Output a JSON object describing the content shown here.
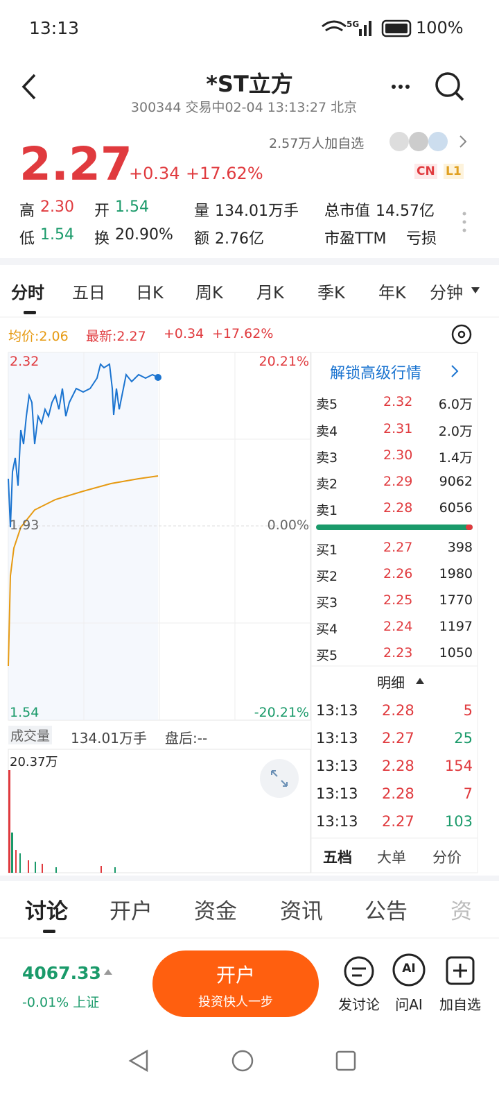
{
  "status": {
    "time": "13:13",
    "network": "5G",
    "battery": "100%"
  },
  "header": {
    "title": "*ST立方",
    "subtitle": "300344 交易中02-04 13:13:27 北京"
  },
  "watchers": "2.57万人加自选",
  "quote": {
    "price": "2.27",
    "change": "+0.34",
    "change_pct": "+17.62%",
    "badges": [
      "CN",
      "L1"
    ]
  },
  "stats": [
    {
      "label": "高",
      "value": "2.30"
    },
    {
      "label": "开",
      "value": "1.54"
    },
    {
      "label": "量",
      "value": "134.01万手"
    },
    {
      "label": "总市值",
      "value": "14.57亿"
    },
    {
      "label": "低",
      "value": "1.54"
    },
    {
      "label": "换",
      "value": "20.90%"
    },
    {
      "label": "额",
      "value": "2.76亿"
    },
    {
      "label": "市盈TTM",
      "value": "亏损"
    }
  ],
  "tabs": [
    "分时",
    "五日",
    "日K",
    "周K",
    "月K",
    "季K",
    "年K",
    "分钟"
  ],
  "chart": {
    "avg": "均价:2.06",
    "latest": "最新:2.27",
    "change": "+0.34",
    "change_pct": "+17.62%",
    "high": "2.32",
    "high_pct": "20.21%",
    "base": "1.93",
    "base_pct": "0.00%",
    "low": "1.54",
    "low_pct": "-20.21%",
    "volume_label": "成交量",
    "volume": "134.01万手",
    "after_hours": "盘后:--",
    "volume_max": "20.37万"
  },
  "book": {
    "unlock": "解锁高级行情",
    "asks": [
      {
        "label": "卖5",
        "price": "2.32",
        "volume": "6.0万"
      },
      {
        "label": "卖4",
        "price": "2.31",
        "volume": "2.0万"
      },
      {
        "label": "卖3",
        "price": "2.30",
        "volume": "1.4万"
      },
      {
        "label": "卖2",
        "price": "2.29",
        "volume": "9062"
      },
      {
        "label": "卖1",
        "price": "2.28",
        "volume": "6056"
      }
    ],
    "bids": [
      {
        "label": "买1",
        "price": "2.27",
        "volume": "398"
      },
      {
        "label": "买2",
        "price": "2.26",
        "volume": "1980"
      },
      {
        "label": "买3",
        "price": "2.25",
        "volume": "1770"
      },
      {
        "label": "买4",
        "price": "2.24",
        "volume": "1197"
      },
      {
        "label": "买5",
        "price": "2.23",
        "volume": "1050"
      }
    ],
    "detail": "明细",
    "trades": [
      {
        "time": "13:13",
        "price": "2.28",
        "volume": "5"
      },
      {
        "time": "13:13",
        "price": "2.27",
        "volume": "25"
      },
      {
        "time": "13:13",
        "price": "2.28",
        "volume": "154"
      },
      {
        "time": "13:13",
        "price": "2.28",
        "volume": "7"
      },
      {
        "time": "13:13",
        "price": "2.27",
        "volume": "103"
      }
    ],
    "tabs": [
      "五档",
      "大单",
      "分价"
    ]
  },
  "bottom_tabs": [
    "讨论",
    "开户",
    "资金",
    "资讯",
    "公告",
    "资"
  ],
  "footer": {
    "index": "4067.33",
    "index_change": "-0.01% 上证",
    "open_title": "开户",
    "open_sub": "投资快人一步",
    "actions": [
      "发讨论",
      "问AI",
      "加自选"
    ]
  }
}
